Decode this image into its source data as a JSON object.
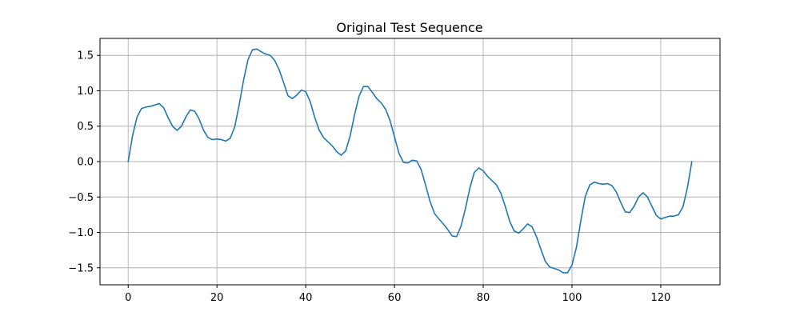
{
  "chart_data": {
    "type": "line",
    "title": "Original Test Sequence",
    "xlabel": "",
    "ylabel": "",
    "xlim": [
      -6.35,
      133.35
    ],
    "ylim": [
      -1.74,
      1.74
    ],
    "xticks": [
      0,
      20,
      40,
      60,
      80,
      100,
      120
    ],
    "yticks": [
      -1.5,
      -1.0,
      -0.5,
      0.0,
      0.5,
      1.0,
      1.5
    ],
    "xtick_labels": [
      "0",
      "20",
      "40",
      "60",
      "80",
      "100",
      "120"
    ],
    "ytick_labels": [
      "−1.5",
      "−1.0",
      "−0.5",
      "0.0",
      "0.5",
      "1.0",
      "1.5"
    ],
    "grid": true,
    "series": [
      {
        "color": "#1f77b4",
        "x": [
          0,
          1,
          2,
          3,
          4,
          5,
          6,
          7,
          8,
          9,
          10,
          11,
          12,
          13,
          14,
          15,
          16,
          17,
          18,
          19,
          20,
          21,
          22,
          23,
          24,
          25,
          26,
          27,
          28,
          29,
          30,
          31,
          32,
          33,
          34,
          35,
          36,
          37,
          38,
          39,
          40,
          41,
          42,
          43,
          44,
          45,
          46,
          47,
          48,
          49,
          50,
          51,
          52,
          53,
          54,
          55,
          56,
          57,
          58,
          59,
          60,
          61,
          62,
          63,
          64,
          65,
          66,
          67,
          68,
          69,
          70,
          71,
          72,
          73,
          74,
          75,
          76,
          77,
          78,
          79,
          80,
          81,
          82,
          83,
          84,
          85,
          86,
          87,
          88,
          89,
          90,
          91,
          92,
          93,
          94,
          95,
          96,
          97,
          98,
          99,
          100,
          101,
          102,
          103,
          104,
          105,
          106,
          107,
          108,
          109,
          110,
          111,
          112,
          113,
          114,
          115,
          116,
          117,
          118,
          119,
          120,
          121,
          122,
          123,
          124,
          125,
          126,
          127
        ],
        "y": [
          0.0,
          0.37,
          0.63,
          0.75,
          0.77,
          0.78,
          0.8,
          0.82,
          0.76,
          0.62,
          0.5,
          0.44,
          0.5,
          0.63,
          0.73,
          0.71,
          0.6,
          0.44,
          0.34,
          0.31,
          0.32,
          0.31,
          0.29,
          0.33,
          0.49,
          0.8,
          1.15,
          1.44,
          1.58,
          1.59,
          1.55,
          1.52,
          1.5,
          1.43,
          1.3,
          1.12,
          0.93,
          0.89,
          0.94,
          1.01,
          0.99,
          0.85,
          0.63,
          0.45,
          0.34,
          0.28,
          0.22,
          0.14,
          0.09,
          0.15,
          0.36,
          0.66,
          0.92,
          1.06,
          1.06,
          0.98,
          0.89,
          0.83,
          0.74,
          0.58,
          0.35,
          0.12,
          -0.01,
          -0.02,
          0.02,
          0.01,
          -0.11,
          -0.33,
          -0.56,
          -0.73,
          -0.81,
          -0.88,
          -0.96,
          -1.05,
          -1.06,
          -0.91,
          -0.66,
          -0.37,
          -0.15,
          -0.09,
          -0.13,
          -0.21,
          -0.27,
          -0.33,
          -0.45,
          -0.64,
          -0.85,
          -0.98,
          -1.01,
          -0.95,
          -0.88,
          -0.92,
          -1.06,
          -1.24,
          -1.41,
          -1.49,
          -1.51,
          -1.53,
          -1.57,
          -1.57,
          -1.46,
          -1.21,
          -0.83,
          -0.49,
          -0.33,
          -0.29,
          -0.31,
          -0.32,
          -0.31,
          -0.34,
          -0.43,
          -0.58,
          -0.71,
          -0.72,
          -0.63,
          -0.5,
          -0.44,
          -0.5,
          -0.63,
          -0.76,
          -0.81,
          -0.79,
          -0.77,
          -0.77,
          -0.75,
          -0.64,
          -0.37,
          0.0
        ]
      }
    ]
  }
}
